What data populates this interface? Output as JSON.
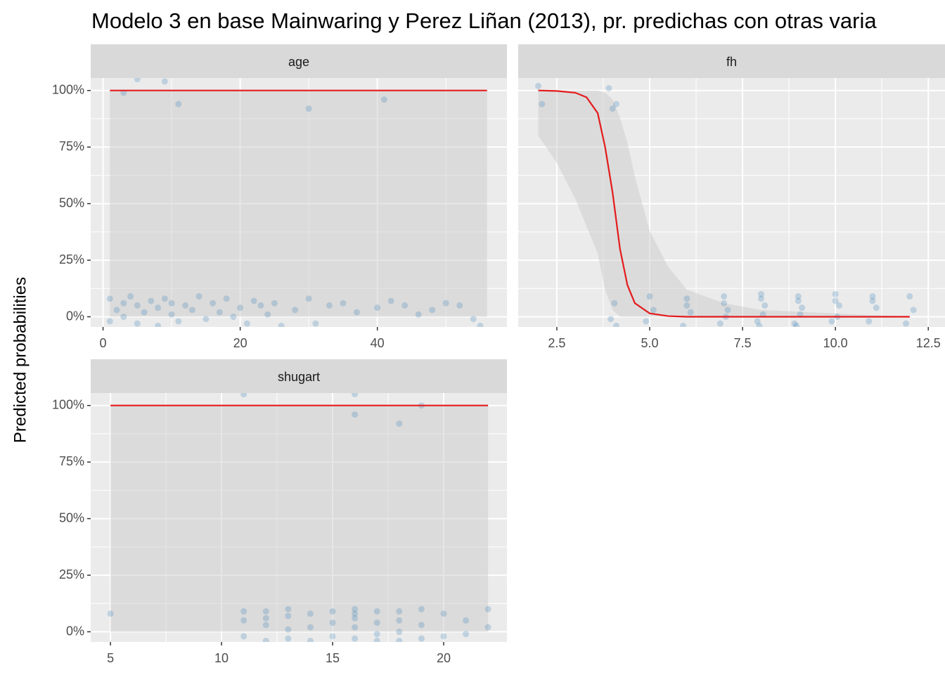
{
  "title": "Modelo 3 en base Mainwaring y Perez Liñan (2013), pr. predichas con otras varia",
  "y_label": "Predicted probabilities",
  "chart_data": [
    {
      "type": "line",
      "facet": "age",
      "line_color": "#e41a1c",
      "point_color": "#377eb8",
      "ribbon_color": "#c8c8c8",
      "x": [
        1,
        56
      ],
      "line": [
        100,
        100
      ],
      "lower": [
        0,
        0
      ],
      "upper": [
        100,
        100
      ],
      "points": {
        "x": [
          1,
          1,
          2,
          3,
          3,
          4,
          5,
          5,
          6,
          7,
          8,
          8,
          9,
          10,
          10,
          11,
          12,
          13,
          14,
          15,
          16,
          17,
          18,
          19,
          20,
          21,
          22,
          23,
          24,
          25,
          26,
          28,
          30,
          31,
          33,
          35,
          37,
          40,
          42,
          44,
          46,
          48,
          50,
          52,
          54,
          55,
          3,
          5,
          9,
          11,
          30,
          41
        ],
        "y": [
          8,
          -2,
          3,
          6,
          0,
          9,
          -3,
          5,
          2,
          7,
          -4,
          4,
          8,
          1,
          6,
          -2,
          5,
          3,
          9,
          -1,
          6,
          2,
          8,
          0,
          4,
          -3,
          7,
          5,
          1,
          6,
          -4,
          3,
          8,
          -3,
          5,
          6,
          2,
          4,
          7,
          5,
          1,
          3,
          6,
          5,
          -1,
          -4,
          99,
          105,
          104,
          94,
          92,
          96
        ]
      },
      "xlim": [
        -1.8,
        58.9
      ],
      "xticks": [
        0,
        20,
        40
      ],
      "xminor": [
        10,
        30,
        50
      ],
      "ylim": [
        -4.5,
        105.5
      ],
      "yticks": [
        {
          "value": 0,
          "label": "0%"
        },
        {
          "value": 25,
          "label": "25%"
        },
        {
          "value": 50,
          "label": "50%"
        },
        {
          "value": 75,
          "label": "75%"
        },
        {
          "value": 100,
          "label": "100%"
        }
      ],
      "yminor": [
        12.5,
        37.5,
        62.5,
        87.5
      ]
    },
    {
      "type": "line",
      "facet": "fh",
      "line_color": "#e41a1c",
      "point_color": "#377eb8",
      "ribbon_color": "#c8c8c8",
      "x": [
        2,
        2.5,
        3,
        3.3,
        3.6,
        3.8,
        4.0,
        4.2,
        4.4,
        4.6,
        5,
        5.5,
        6,
        7,
        8,
        12
      ],
      "line": [
        100,
        99.8,
        99,
        97,
        90,
        75,
        55,
        30,
        14,
        6,
        1.5,
        0.3,
        0,
        0,
        0,
        0
      ],
      "lower": [
        80,
        68,
        52,
        40,
        28,
        12,
        3,
        0,
        0,
        0,
        0,
        0,
        0,
        0,
        0,
        0
      ],
      "upper": [
        100,
        100,
        100,
        100,
        100,
        99,
        96,
        88,
        77,
        62,
        38,
        22,
        12,
        6,
        3,
        0
      ],
      "points": {
        "x": [
          2,
          2.1,
          3.9,
          4.0,
          4.1,
          3.95,
          4.05,
          4.1,
          5,
          5.1,
          4.9,
          6,
          6.1,
          5.9,
          6,
          7,
          7.1,
          6.9,
          7,
          7.05,
          8,
          8.1,
          7.9,
          8,
          8.05,
          7.95,
          9,
          9.1,
          8.9,
          9,
          9.05,
          8.95,
          10,
          10.1,
          9.9,
          10,
          10.05,
          11,
          11.1,
          10.9,
          11,
          12,
          12.1,
          11.9
        ],
        "y": [
          102,
          94,
          101,
          92,
          94,
          -1,
          6,
          -4,
          9,
          3,
          -2,
          8,
          2,
          -4,
          5,
          9,
          3,
          -3,
          6,
          0,
          10,
          5,
          -2,
          8,
          1,
          -4,
          9,
          4,
          -3,
          7,
          1,
          -4,
          10,
          5,
          -2,
          7,
          0,
          9,
          4,
          -2,
          7,
          9,
          3,
          -3
        ]
      },
      "xlim": [
        1.46,
        12.95
      ],
      "xticks": [
        2.5,
        {
          "value": 5,
          "label": "5.0"
        },
        7.5,
        {
          "value": 10,
          "label": "10.0"
        },
        12.5
      ],
      "xminor": [
        3.75,
        6.25,
        8.75,
        11.25
      ],
      "ylim": [
        -4.5,
        105.5
      ],
      "yticks": [
        0,
        25,
        50,
        75,
        100
      ],
      "yminor": [
        12.5,
        37.5,
        62.5,
        87.5
      ]
    },
    {
      "type": "line",
      "facet": "shugart",
      "line_color": "#e41a1c",
      "point_color": "#377eb8",
      "ribbon_color": "#c8c8c8",
      "x": [
        5,
        22
      ],
      "line": [
        100,
        100
      ],
      "lower": [
        0,
        0
      ],
      "upper": [
        100,
        100
      ],
      "points": {
        "x": [
          5,
          11,
          11,
          11,
          12,
          12,
          12,
          12,
          13,
          13,
          13,
          13,
          14,
          14,
          14,
          15,
          15,
          15,
          16,
          16,
          16,
          16,
          16,
          17,
          17,
          17,
          17,
          18,
          18,
          18,
          18,
          19,
          19,
          19,
          20,
          20,
          21,
          21,
          22,
          22,
          11,
          16,
          16,
          18,
          19
        ],
        "y": [
          8,
          9,
          -2,
          5,
          9,
          3,
          -4,
          6,
          10,
          1,
          -3,
          7,
          8,
          2,
          -4,
          9,
          4,
          -2,
          10,
          6,
          2,
          -3,
          8,
          9,
          4,
          -1,
          -4,
          9,
          5,
          0,
          -4,
          10,
          3,
          -3,
          8,
          -2,
          5,
          -1,
          10,
          2,
          105,
          105,
          96,
          92,
          100
        ]
      },
      "xlim": [
        4.11,
        22.85
      ],
      "xticks": [
        5,
        10,
        15,
        20
      ],
      "xminor": [
        7.5,
        12.5,
        17.5
      ],
      "ylim": [
        -4.5,
        105.5
      ],
      "yticks": [
        {
          "value": 0,
          "label": "0%"
        },
        {
          "value": 25,
          "label": "25%"
        },
        {
          "value": 50,
          "label": "50%"
        },
        {
          "value": 75,
          "label": "75%"
        },
        {
          "value": 100,
          "label": "100%"
        }
      ],
      "yminor": [
        12.5,
        37.5,
        62.5,
        87.5
      ]
    }
  ]
}
